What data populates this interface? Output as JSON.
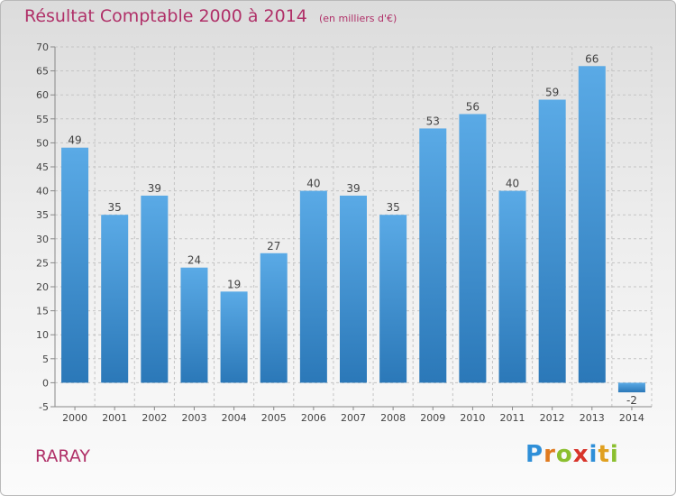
{
  "title": "Résultat Comptable 2000 à 2014",
  "subtitle": "(en milliers d'€)",
  "commune": "RARAY",
  "logo": {
    "letters": [
      "P",
      "r",
      "o",
      "x",
      "i",
      "t",
      "i"
    ],
    "colors": [
      "#2f8fd8",
      "#e07a1f",
      "#8bbf2f",
      "#d8342a",
      "#2f8fd8",
      "#e0a020",
      "#8bbf2f"
    ]
  },
  "chart_data": {
    "type": "bar",
    "title": "Résultat Comptable 2000 à 2014",
    "ylabel": "(en milliers d'€)",
    "xlabel": "",
    "categories": [
      "2000",
      "2001",
      "2002",
      "2003",
      "2004",
      "2005",
      "2006",
      "2007",
      "2008",
      "2009",
      "2010",
      "2011",
      "2012",
      "2013",
      "2014"
    ],
    "values": [
      49,
      35,
      39,
      24,
      19,
      27,
      40,
      39,
      35,
      53,
      56,
      40,
      59,
      66,
      -2
    ],
    "ylim": [
      -5,
      70
    ],
    "yticks": [
      -5,
      0,
      5,
      10,
      15,
      20,
      25,
      30,
      35,
      40,
      45,
      50,
      55,
      60,
      65,
      70
    ],
    "grid": true,
    "bar_color_top": "#5aaae6",
    "bar_color_bottom": "#2b78b8"
  }
}
